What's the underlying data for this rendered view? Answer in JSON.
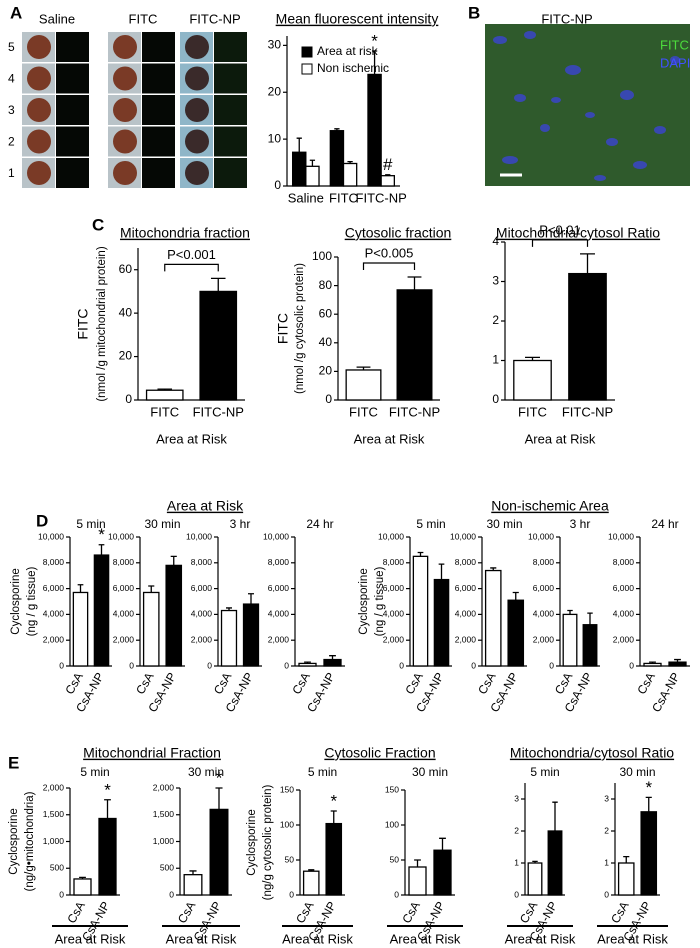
{
  "figure": {
    "panel_labels": [
      "A",
      "B",
      "C",
      "D",
      "E"
    ],
    "panel_a_images": {
      "columns": [
        "Saline",
        "FITC",
        "FITC-NP"
      ],
      "rows": [
        "5",
        "4",
        "3",
        "2",
        "1"
      ]
    },
    "panel_b": {
      "title": "FITC-NP",
      "legend": [
        "FITC",
        "DAPI"
      ]
    },
    "d_groups": [
      "Area at Risk",
      "Non-ischemic Area"
    ],
    "e_groups": [
      "Mitochondrial Fraction",
      "Cytosolic Fraction",
      "Mitochondria/cytosol Ratio"
    ]
  },
  "chart_data": [
    {
      "type": "bar",
      "title": "Mean fluorescent intensity",
      "categories": [
        "Saline",
        "FITC",
        "FITC-NP"
      ],
      "series": [
        {
          "name": "Area at risk",
          "color": "#000000",
          "values": [
            7.2,
            11.8,
            23.8
          ],
          "errors": [
            3.0,
            0.4,
            5.0
          ],
          "annotations": [
            null,
            null,
            "*"
          ]
        },
        {
          "name": "Non ischemic",
          "color": "#ffffff",
          "values": [
            4.2,
            4.8,
            2.2
          ],
          "errors": [
            1.3,
            0.4,
            0.2
          ],
          "annotations": [
            null,
            null,
            "#"
          ]
        }
      ],
      "ylim": [
        0,
        32
      ],
      "yticks": [
        0,
        10,
        20,
        30
      ]
    },
    {
      "type": "bar",
      "title": "Mitochondria fraction",
      "ylabel": [
        "FITC",
        "(nmol /g mitochondrial protein)"
      ],
      "xlabel": "Area at Risk",
      "categories": [
        "FITC",
        "FITC-NP"
      ],
      "values": [
        4.5,
        50
      ],
      "errors": [
        0.5,
        6
      ],
      "colors": [
        "#ffffff",
        "#000000"
      ],
      "p_value": "P<0.001",
      "ylim": [
        0,
        70
      ],
      "yticks": [
        0,
        20,
        40,
        60
      ]
    },
    {
      "type": "bar",
      "title": "Cytosolic fraction",
      "ylabel": [
        "FITC",
        "(nmol /g cytosolic protein)"
      ],
      "xlabel": "Area at Risk",
      "categories": [
        "FITC",
        "FITC-NP"
      ],
      "values": [
        21,
        77
      ],
      "errors": [
        2,
        9
      ],
      "colors": [
        "#ffffff",
        "#000000"
      ],
      "p_value": "P<0.005",
      "ylim": [
        0,
        100
      ],
      "yticks": [
        0,
        20,
        40,
        60,
        80,
        100
      ]
    },
    {
      "type": "bar",
      "title": "Mitochondria/cytosol Ratio",
      "xlabel": "Area at Risk",
      "categories": [
        "FITC",
        "FITC-NP"
      ],
      "values": [
        1.0,
        3.2
      ],
      "errors": [
        0.08,
        0.5
      ],
      "colors": [
        "#ffffff",
        "#000000"
      ],
      "p_value": "P<0.01",
      "ylim": [
        0,
        4
      ],
      "yticks": [
        0,
        1,
        2,
        3,
        4
      ]
    },
    {
      "type": "bar",
      "subtitle": "5 min",
      "ylabel": [
        "Cyclosporine",
        "(ng / g tissue)"
      ],
      "categories": [
        "CsA",
        "CsA-NP"
      ],
      "values": [
        5700,
        8600
      ],
      "errors": [
        600,
        800
      ],
      "colors": [
        "#ffffff",
        "#000000"
      ],
      "annotations": [
        null,
        "*"
      ],
      "ylim": [
        0,
        10000
      ],
      "yticks": [
        0,
        {
          "value": 2000,
          "label": "2,000"
        },
        {
          "value": 4000,
          "label": "4,000"
        },
        {
          "value": 6000,
          "label": "6,000"
        },
        {
          "value": 8000,
          "label": "8,000"
        },
        {
          "value": 10000,
          "label": "10,000"
        }
      ]
    },
    {
      "type": "bar",
      "subtitle": "30 min",
      "categories": [
        "CsA",
        "CsA-NP"
      ],
      "values": [
        5700,
        7800
      ],
      "errors": [
        500,
        700
      ],
      "colors": [
        "#ffffff",
        "#000000"
      ],
      "ylim": [
        0,
        10000
      ],
      "yticks": [
        0,
        {
          "value": 2000,
          "label": "2,000"
        },
        {
          "value": 4000,
          "label": "4,000"
        },
        {
          "value": 6000,
          "label": "6,000"
        },
        {
          "value": 8000,
          "label": "8,000"
        },
        {
          "value": 10000,
          "label": "10,000"
        }
      ]
    },
    {
      "type": "bar",
      "subtitle": "3 hr",
      "categories": [
        "CsA",
        "CsA-NP"
      ],
      "values": [
        4300,
        4800
      ],
      "errors": [
        200,
        800
      ],
      "colors": [
        "#ffffff",
        "#000000"
      ],
      "ylim": [
        0,
        10000
      ],
      "yticks": [
        0,
        {
          "value": 2000,
          "label": "2,000"
        },
        {
          "value": 4000,
          "label": "4,000"
        },
        {
          "value": 6000,
          "label": "6,000"
        },
        {
          "value": 8000,
          "label": "8,000"
        },
        {
          "value": 10000,
          "label": "10,000"
        }
      ]
    },
    {
      "type": "bar",
      "subtitle": "24 hr",
      "categories": [
        "CsA",
        "CsA-NP"
      ],
      "values": [
        200,
        500
      ],
      "errors": [
        100,
        300
      ],
      "colors": [
        "#ffffff",
        "#000000"
      ],
      "ylim": [
        0,
        10000
      ],
      "yticks": [
        0,
        {
          "value": 2000,
          "label": "2,000"
        },
        {
          "value": 4000,
          "label": "4,000"
        },
        {
          "value": 6000,
          "label": "6,000"
        },
        {
          "value": 8000,
          "label": "8,000"
        },
        {
          "value": 10000,
          "label": "10,000"
        }
      ]
    },
    {
      "type": "bar",
      "subtitle": "5 min",
      "ylabel": [
        "Cyclosporine",
        "(ng / g tissue)"
      ],
      "categories": [
        "CsA",
        "CsA-NP"
      ],
      "values": [
        8500,
        6700
      ],
      "errors": [
        300,
        1200
      ],
      "colors": [
        "#ffffff",
        "#000000"
      ],
      "ylim": [
        0,
        10000
      ],
      "yticks": [
        0,
        {
          "value": 2000,
          "label": "2,000"
        },
        {
          "value": 4000,
          "label": "4,000"
        },
        {
          "value": 6000,
          "label": "6,000"
        },
        {
          "value": 8000,
          "label": "8,000"
        },
        {
          "value": 10000,
          "label": "10,000"
        }
      ]
    },
    {
      "type": "bar",
      "subtitle": "30 min",
      "categories": [
        "CsA",
        "CsA-NP"
      ],
      "values": [
        7400,
        5100
      ],
      "errors": [
        200,
        600
      ],
      "colors": [
        "#ffffff",
        "#000000"
      ],
      "ylim": [
        0,
        10000
      ],
      "yticks": [
        0,
        {
          "value": 2000,
          "label": "2,000"
        },
        {
          "value": 4000,
          "label": "4,000"
        },
        {
          "value": 6000,
          "label": "6,000"
        },
        {
          "value": 8000,
          "label": "8,000"
        },
        {
          "value": 10000,
          "label": "10,000"
        }
      ]
    },
    {
      "type": "bar",
      "subtitle": "3 hr",
      "categories": [
        "CsA",
        "CsA-NP"
      ],
      "values": [
        4000,
        3200
      ],
      "errors": [
        300,
        900
      ],
      "colors": [
        "#ffffff",
        "#000000"
      ],
      "ylim": [
        0,
        10000
      ],
      "yticks": [
        0,
        {
          "value": 2000,
          "label": "2,000"
        },
        {
          "value": 4000,
          "label": "4,000"
        },
        {
          "value": 6000,
          "label": "6,000"
        },
        {
          "value": 8000,
          "label": "8,000"
        },
        {
          "value": 10000,
          "label": "10,000"
        }
      ]
    },
    {
      "type": "bar",
      "subtitle": "24 hr",
      "categories": [
        "CsA",
        "CsA-NP"
      ],
      "values": [
        200,
        300
      ],
      "errors": [
        100,
        200
      ],
      "colors": [
        "#ffffff",
        "#000000"
      ],
      "ylim": [
        0,
        10000
      ],
      "yticks": [
        0,
        {
          "value": 2000,
          "label": "2,000"
        },
        {
          "value": 4000,
          "label": "4,000"
        },
        {
          "value": 6000,
          "label": "6,000"
        },
        {
          "value": 8000,
          "label": "8,000"
        },
        {
          "value": 10000,
          "label": "10,000"
        }
      ]
    },
    {
      "type": "bar",
      "subtitle": "5 min",
      "ylabel": [
        "Cyclosporine",
        "(ng/g•mitochondria)"
      ],
      "xlabel": "Area at Risk",
      "categories": [
        "CsA",
        "CsA-NP"
      ],
      "values": [
        300,
        1430
      ],
      "errors": [
        30,
        350
      ],
      "colors": [
        "#ffffff",
        "#000000"
      ],
      "annotations": [
        null,
        "*"
      ],
      "ylim": [
        0,
        2000
      ],
      "yticks": [
        0,
        500,
        {
          "value": 1000,
          "label": "1,000"
        },
        {
          "value": 1500,
          "label": "1,500"
        },
        {
          "value": 2000,
          "label": "2,000"
        }
      ]
    },
    {
      "type": "bar",
      "subtitle": "30 min",
      "xlabel": "Area at Risk",
      "categories": [
        "CsA",
        "CsA-NP"
      ],
      "values": [
        380,
        1600
      ],
      "errors": [
        70,
        400
      ],
      "colors": [
        "#ffffff",
        "#000000"
      ],
      "annotations": [
        null,
        "*"
      ],
      "ylim": [
        0,
        2000
      ],
      "yticks": [
        0,
        500,
        {
          "value": 1000,
          "label": "1,000"
        },
        {
          "value": 1500,
          "label": "1,500"
        },
        {
          "value": 2000,
          "label": "2,000"
        }
      ]
    },
    {
      "type": "bar",
      "subtitle": "5 min",
      "ylabel": [
        "Cyclosporine",
        "(ng/g cytosolic protein)"
      ],
      "xlabel": "Area at Risk",
      "categories": [
        "CsA",
        "CsA-NP"
      ],
      "values": [
        34,
        102
      ],
      "errors": [
        2,
        18
      ],
      "colors": [
        "#ffffff",
        "#000000"
      ],
      "annotations": [
        null,
        "*"
      ],
      "ylim": [
        0,
        150
      ],
      "yticks": [
        0,
        50,
        100,
        150
      ]
    },
    {
      "type": "bar",
      "subtitle": "30 min",
      "xlabel": "Area at Risk",
      "categories": [
        "CsA",
        "CsA-NP"
      ],
      "values": [
        40,
        64
      ],
      "errors": [
        10,
        17
      ],
      "colors": [
        "#ffffff",
        "#000000"
      ],
      "ylim": [
        0,
        150
      ],
      "yticks": [
        0,
        50,
        100,
        150
      ]
    },
    {
      "type": "bar",
      "subtitle": "5 min",
      "xlabel": "Area at Risk",
      "categories": [
        "CsA",
        "CsA-NP"
      ],
      "values": [
        1.0,
        2.0
      ],
      "errors": [
        0.05,
        0.9
      ],
      "colors": [
        "#ffffff",
        "#000000"
      ],
      "ylim": [
        0,
        3.5
      ],
      "yticks": [
        0,
        1,
        2,
        3
      ]
    },
    {
      "type": "bar",
      "subtitle": "30 min",
      "xlabel": "Area at Risk",
      "categories": [
        "CsA",
        "CsA-NP"
      ],
      "values": [
        1.0,
        2.6
      ],
      "errors": [
        0.2,
        0.45
      ],
      "colors": [
        "#ffffff",
        "#000000"
      ],
      "annotations": [
        null,
        "*"
      ],
      "ylim": [
        0,
        3.5
      ],
      "yticks": [
        0,
        1,
        2,
        3
      ]
    }
  ]
}
